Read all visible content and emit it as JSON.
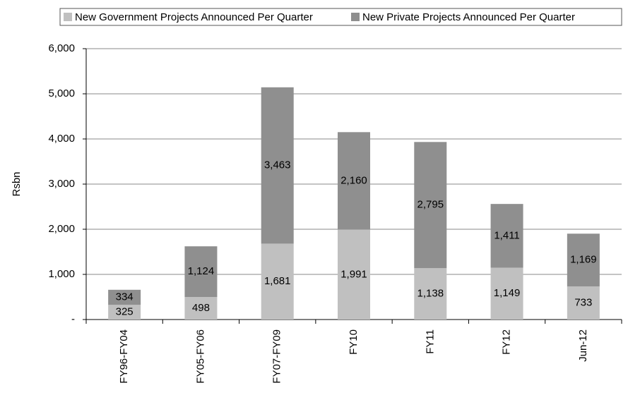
{
  "chart_data": {
    "type": "bar",
    "stacked": true,
    "y_label": "Rsbn",
    "categories": [
      "FY96-FY04",
      "FY05-FY06",
      "FY07-FY09",
      "FY10",
      "FY11",
      "FY12",
      "Jun-12"
    ],
    "series": [
      {
        "name": "New Government Projects Announced Per Quarter",
        "color": "#c0c0c0",
        "values": [
          325,
          498,
          1681,
          1991,
          1138,
          1149,
          733
        ],
        "value_labels": [
          "325",
          "498",
          "1,681",
          "1,991",
          "1,138",
          "1,149",
          "733"
        ]
      },
      {
        "name": "New Private Projects Announced Per Quarter",
        "color": "#8f8f8f",
        "values": [
          334,
          1124,
          3463,
          2160,
          2795,
          1411,
          1169
        ],
        "value_labels": [
          "334",
          "1,124",
          "3,463",
          "2,160",
          "2,795",
          "1,411",
          "1,169"
        ]
      }
    ],
    "ylim": [
      0,
      6000
    ],
    "yticks": [
      {
        "value": 0,
        "label": "-"
      },
      {
        "value": 1000,
        "label": "1,000"
      },
      {
        "value": 2000,
        "label": "2,000"
      },
      {
        "value": 3000,
        "label": "3,000"
      },
      {
        "value": 4000,
        "label": "4,000"
      },
      {
        "value": 5000,
        "label": "5,000"
      },
      {
        "value": 6000,
        "label": "6,000"
      }
    ],
    "grid": true,
    "legend": "top"
  }
}
